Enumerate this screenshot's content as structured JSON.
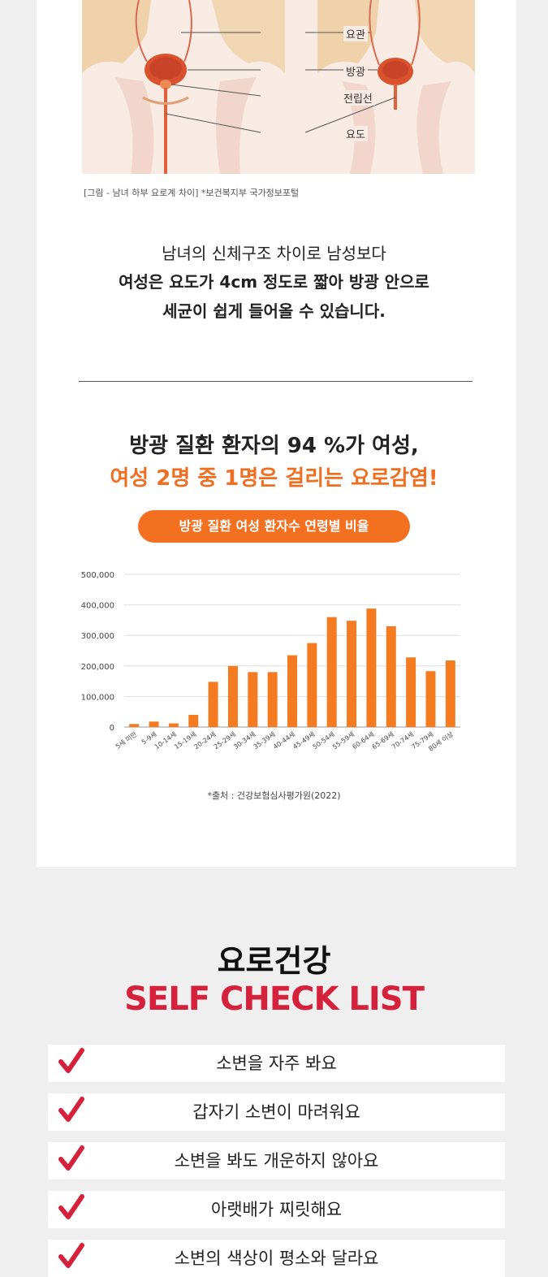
{
  "figure": {
    "labels": [
      "요관",
      "방광",
      "전립선",
      "요도"
    ],
    "caption": "[그림 - 남녀 하부 요로계 차이] *보건복지부 국가정보포털"
  },
  "intro": [
    "남녀의 신체구조 차이로 남성보다",
    "여성은 요도가 4cm 정도로 짧아 방광 안으로",
    "세균이 쉽게 들어올 수 있습니다."
  ],
  "headline": {
    "line1": "방광 질환 환자의 94 %가 여성,",
    "line2": "여성 2명 중 1명은 걸리는 요로감염!"
  },
  "chart_title": "방광 질환 여성 환자수 연령별 비율",
  "chart_data": {
    "type": "bar",
    "title": "",
    "xlabel": "",
    "ylabel": "",
    "ylim": [
      0,
      500000
    ],
    "yticks": [
      "500,000",
      "400,000",
      "300,000",
      "200,000",
      "100,000",
      "0"
    ],
    "categories": [
      "5세 미만",
      "5-9세",
      "10-14세",
      "15-19세",
      "20-24세",
      "25-29세",
      "30-34세",
      "35-39세",
      "40-44세",
      "45-49세",
      "50-54세",
      "55-59세",
      "60-64세",
      "65-69세",
      "70-74세",
      "75-79세",
      "80세 이상"
    ],
    "values": [
      10000,
      18000,
      12000,
      40000,
      148000,
      200000,
      180000,
      180000,
      235000,
      275000,
      360000,
      348000,
      388000,
      330000,
      228000,
      183000,
      218000
    ],
    "bar_color": "#f47b20",
    "grid": true
  },
  "source": "*출처 : 건강보험심사평가원(2022)",
  "checklist": {
    "title": "요로건강",
    "subtitle": "SELF CHECK LIST",
    "items": [
      "소변을 자주 봐요",
      "갑자기 소변이 마려워요",
      "소변을 봐도 개운하지 않아요",
      "아랫배가 찌릿해요",
      "소변의 색상이 평소와 달라요"
    ]
  },
  "colors": {
    "accent_orange": "#f37021",
    "check_red": "#d5213b"
  }
}
